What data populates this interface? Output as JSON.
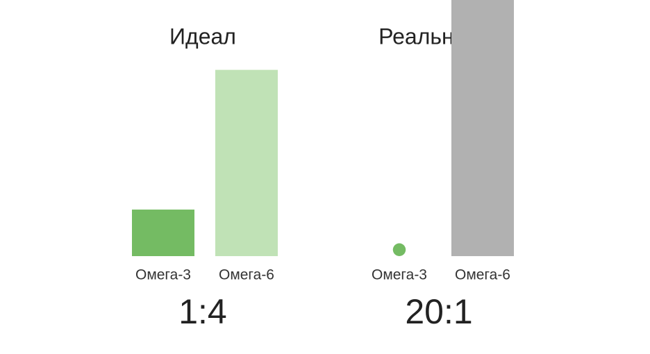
{
  "chart_data": [
    {
      "type": "bar",
      "title": "Идеал",
      "categories": [
        "Омега-3",
        "Омега-6"
      ],
      "values": [
        1,
        4
      ],
      "colors": [
        "#74bb63",
        "#c0e2b6"
      ],
      "ylim": [
        0,
        5.5
      ],
      "annotation": "1:4"
    },
    {
      "type": "bar",
      "title": "Реальность",
      "categories": [
        "Омега-3",
        "Омега-6"
      ],
      "values": [
        1,
        20
      ],
      "colors": [
        "#74bb63",
        "#b1b1b1"
      ],
      "ylim": [
        0,
        20
      ],
      "annotation": "20:1"
    }
  ]
}
